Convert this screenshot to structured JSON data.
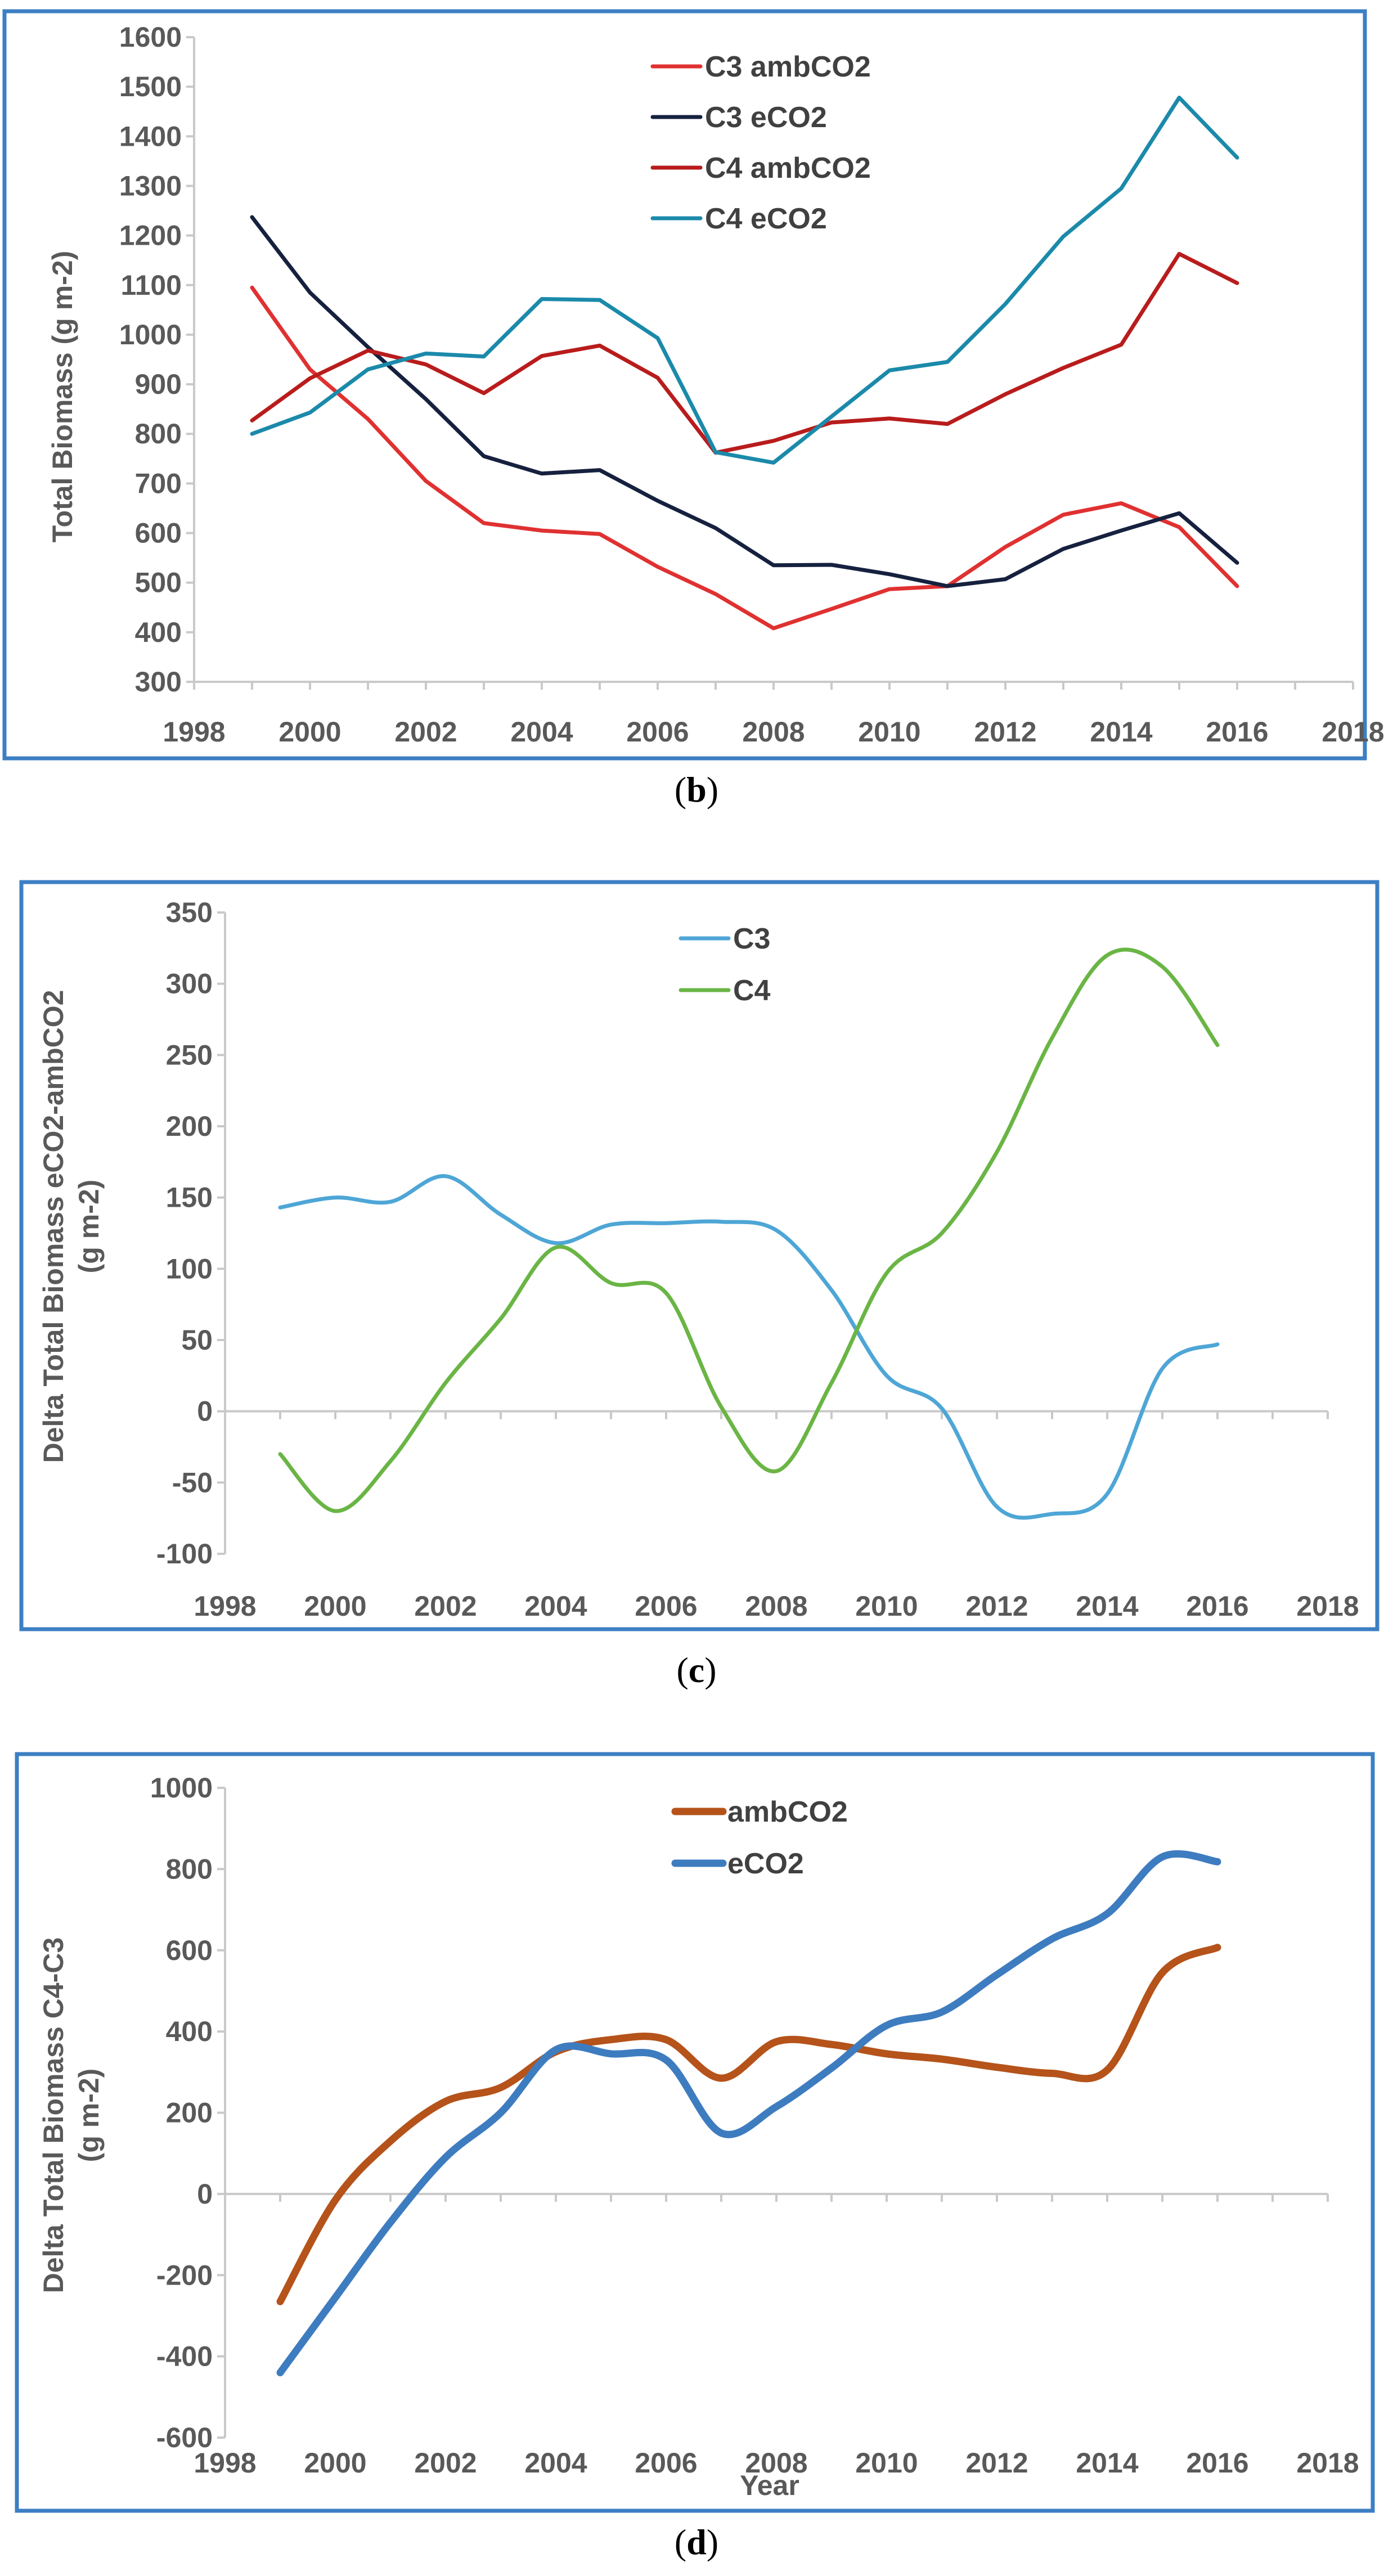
{
  "chart_data": [
    {
      "id": "b",
      "type": "line",
      "caption_letter": "b",
      "title": "",
      "xlabel": "",
      "ylabel": "Total Biomass (g m-2)",
      "xlim": [
        1998,
        2018
      ],
      "ylim": [
        300,
        1600
      ],
      "x_ticks": [
        "1998",
        "2000",
        "2002",
        "2004",
        "2006",
        "2008",
        "2010",
        "2012",
        "2014",
        "2016",
        "2018"
      ],
      "y_ticks": [
        "300",
        "400",
        "500",
        "600",
        "700",
        "800",
        "900",
        "1000",
        "1100",
        "1200",
        "1300",
        "1400",
        "1500",
        "1600"
      ],
      "x": [
        1999,
        2000,
        2001,
        2002,
        2003,
        2004,
        2005,
        2006,
        2007,
        2008,
        2009,
        2010,
        2011,
        2012,
        2013,
        2014,
        2015,
        2016
      ],
      "smooth": false,
      "legend_position": "top-center",
      "series": [
        {
          "name": "C3 ambCO2",
          "color": "#e03131",
          "values": [
            1095,
            930,
            830,
            705,
            620,
            605,
            598,
            532,
            477,
            408,
            447,
            487,
            493,
            572,
            637,
            660,
            612,
            493
          ]
        },
        {
          "name": "C3 eCO2",
          "color": "#16213f",
          "values": [
            1237,
            1085,
            975,
            870,
            755,
            720,
            727,
            665,
            610,
            535,
            536,
            517,
            493,
            507,
            568,
            605,
            640,
            540
          ]
        },
        {
          "name": "C4 ambCO2",
          "color": "#b91c1c",
          "values": [
            827,
            912,
            968,
            940,
            882,
            957,
            978,
            913,
            762,
            786,
            823,
            831,
            820,
            880,
            933,
            980,
            1163,
            1104
          ]
        },
        {
          "name": "C4 eCO2",
          "color": "#1b8aaa",
          "values": [
            800,
            843,
            930,
            962,
            956,
            1072,
            1070,
            993,
            763,
            742,
            835,
            928,
            945,
            1062,
            1198,
            1295,
            1478,
            1357
          ]
        }
      ]
    },
    {
      "id": "c",
      "type": "line",
      "caption_letter": "c",
      "title": "",
      "xlabel": "",
      "ylabel": "Delta Total Biomass eCO2-ambCO2 (g m-2)",
      "ylabel_lines": [
        "Delta Total Biomass eCO2-ambCO2",
        "(g m-2)"
      ],
      "xlim": [
        1998,
        2018
      ],
      "ylim": [
        -100,
        350
      ],
      "x_ticks": [
        "1998",
        "2000",
        "2002",
        "2004",
        "2006",
        "2008",
        "2010",
        "2012",
        "2014",
        "2016",
        "2018"
      ],
      "y_ticks": [
        "-100",
        "-50",
        "0",
        "50",
        "100",
        "150",
        "200",
        "250",
        "300",
        "350"
      ],
      "x": [
        1999,
        2000,
        2001,
        2002,
        2003,
        2004,
        2005,
        2006,
        2007,
        2008,
        2009,
        2010,
        2011,
        2012,
        2013,
        2014,
        2015,
        2016
      ],
      "smooth": true,
      "legend_position": "top-center",
      "series": [
        {
          "name": "C3",
          "color": "#4ea6d6",
          "values": [
            143,
            150,
            147,
            165,
            138,
            118,
            131,
            132,
            133,
            127,
            85,
            25,
            2,
            -67,
            -72,
            -58,
            30,
            47
          ]
        },
        {
          "name": "C4",
          "color": "#6ab545",
          "values": [
            -30,
            -70,
            -35,
            20,
            65,
            115,
            90,
            83,
            3,
            -42,
            20,
            97,
            125,
            182,
            262,
            320,
            312,
            257
          ]
        }
      ]
    },
    {
      "id": "d",
      "type": "line",
      "caption_letter": "d",
      "title": "",
      "xlabel": "Year",
      "ylabel": "Delta Total Biomass C4-C3 (g m-2)",
      "ylabel_lines": [
        "Delta Total Biomass C4-C3",
        "(g m-2)"
      ],
      "xlim": [
        1998,
        2018
      ],
      "ylim": [
        -600,
        1000
      ],
      "x_ticks": [
        "1998",
        "2000",
        "2002",
        "2004",
        "2006",
        "2008",
        "2010",
        "2012",
        "2014",
        "2016",
        "2018"
      ],
      "y_ticks": [
        "-600",
        "-400",
        "-200",
        "0",
        "200",
        "400",
        "600",
        "800",
        "1000"
      ],
      "x": [
        1999,
        2000,
        2001,
        2002,
        2003,
        2004,
        2005,
        2006,
        2007,
        2008,
        2009,
        2010,
        2011,
        2012,
        2013,
        2014,
        2015,
        2016
      ],
      "smooth": true,
      "legend_position": "top-center",
      "series": [
        {
          "name": "ambCO2",
          "color": "#b5531a",
          "values": [
            -265,
            -15,
            130,
            228,
            262,
            350,
            380,
            380,
            285,
            375,
            368,
            345,
            332,
            312,
            297,
            305,
            545,
            607
          ]
        },
        {
          "name": "eCO2",
          "color": "#3e7cc0",
          "values": [
            -440,
            -255,
            -70,
            90,
            200,
            355,
            345,
            330,
            150,
            215,
            310,
            415,
            448,
            540,
            628,
            690,
            830,
            818
          ]
        }
      ]
    }
  ]
}
